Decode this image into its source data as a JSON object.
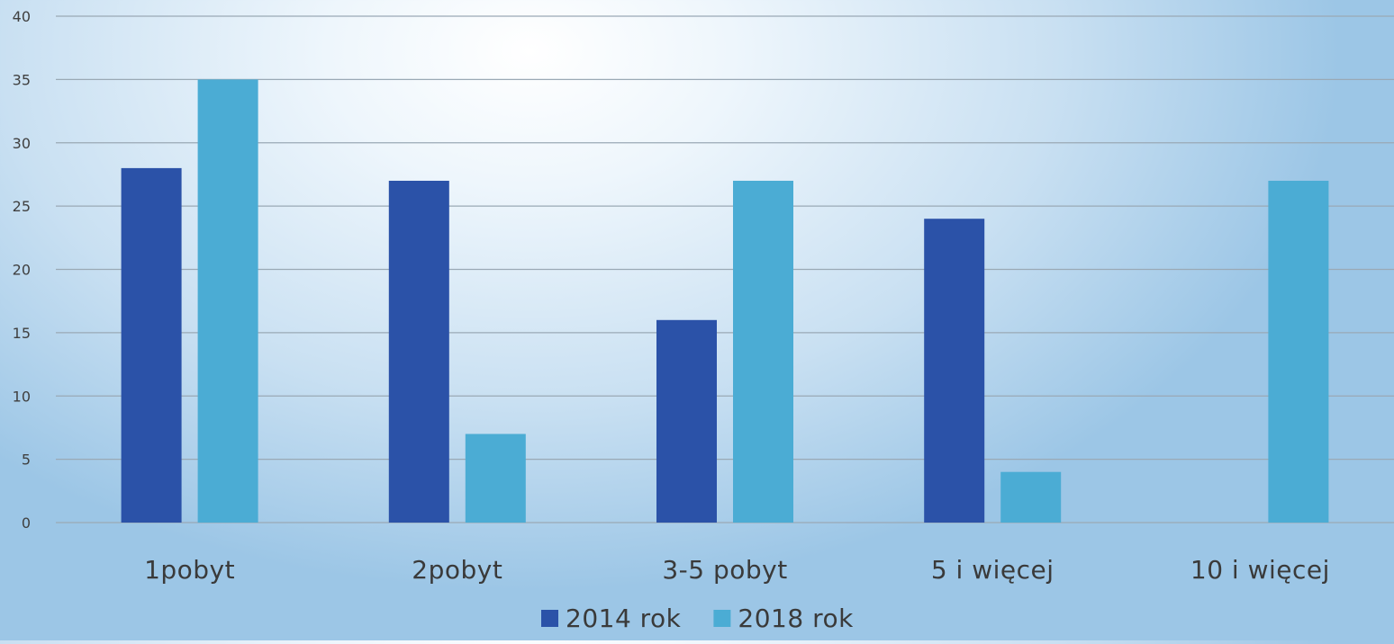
{
  "chart_data": {
    "type": "bar",
    "categories": [
      "1pobyt",
      "2pobyt",
      "3-5 pobyt",
      "5 i więcej",
      "10 i więcej"
    ],
    "series": [
      {
        "name": "2014 rok",
        "values": [
          28,
          27,
          16,
          24,
          0
        ],
        "color": "#2b52a8"
      },
      {
        "name": "2018 rok",
        "values": [
          35,
          7,
          27,
          4,
          27
        ],
        "color": "#4bacd4"
      }
    ],
    "title": "",
    "xlabel": "",
    "ylabel": "",
    "ylim": [
      0,
      40
    ],
    "yticks": [
      0,
      5,
      10,
      15,
      20,
      25,
      30,
      35,
      40
    ],
    "grid": true,
    "legend": "bottom"
  }
}
